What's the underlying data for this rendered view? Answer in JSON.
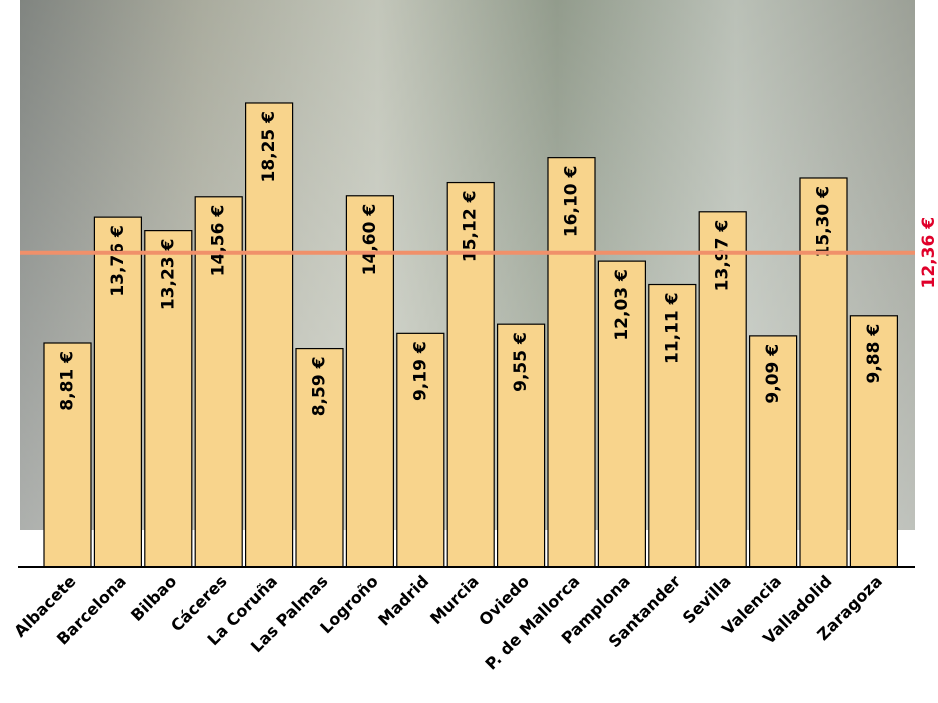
{
  "chart_data": {
    "type": "bar",
    "categories": [
      "Albacete",
      "Barcelona",
      "Bilbao",
      "Cáceres",
      "La Coruña",
      "Las Palmas",
      "Logroño",
      "Madrid",
      "Murcia",
      "Oviedo",
      "P. de Mallorca",
      "Pamplona",
      "Santander",
      "Sevilla",
      "Valencia",
      "Valladolid",
      "Zaragoza"
    ],
    "values": [
      8.81,
      13.76,
      13.23,
      14.56,
      18.25,
      8.59,
      14.6,
      9.19,
      15.12,
      9.55,
      16.1,
      12.03,
      11.11,
      13.97,
      9.09,
      15.3,
      9.88
    ],
    "value_labels": [
      "8,81 €",
      "13,76 €",
      "13,23 €",
      "14,56 €",
      "18,25 €",
      "8,59 €",
      "14,60 €",
      "9,19 €",
      "15,12 €",
      "9,55 €",
      "16,10 €",
      "12,03 €",
      "11,11 €",
      "13,97 €",
      "9,09 €",
      "15,30 €",
      "9,88 €"
    ],
    "color": "#f8d48c",
    "ylim": [
      0,
      22.3
    ],
    "reference": {
      "value": 12.36,
      "label": "12,36 €",
      "color": "#f0906a",
      "label_color": "#e0002a"
    }
  }
}
